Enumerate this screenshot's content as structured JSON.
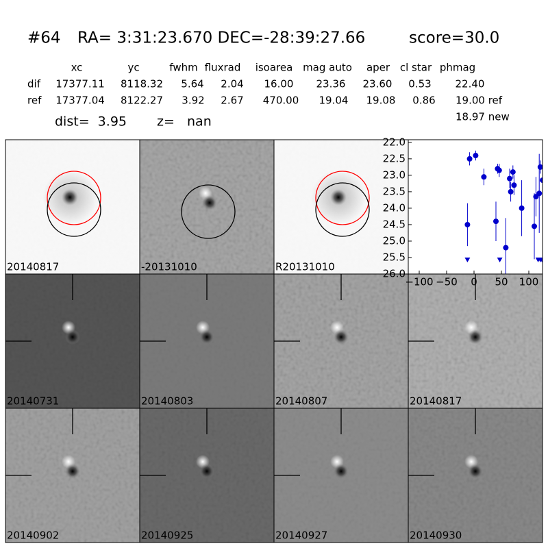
{
  "header": {
    "id": "#64",
    "coords": "RA= 3:31:23.670 DEC=-28:39:27.66",
    "score": "score=30.0"
  },
  "table": {
    "columns": [
      "xc",
      "yc",
      "fwhm",
      "fluxrad",
      "isoarea",
      "mag auto",
      "aper",
      "cl star",
      "phmag"
    ],
    "rows": [
      {
        "label": "dif",
        "cells": [
          "17377.11",
          "8118.32",
          "5.64",
          "2.04",
          "16.00",
          "23.36",
          "23.60",
          "0.53",
          "22.40"
        ]
      },
      {
        "label": "ref",
        "cells": [
          "17377.04",
          "8122.27",
          "3.92",
          "2.67",
          "470.00",
          "19.04",
          "19.08",
          "0.86",
          "19.00 ref"
        ]
      }
    ],
    "extra": "18.97 new"
  },
  "summary": {
    "dist": "dist=  3.95",
    "z": "z=   nan"
  },
  "panels": [
    {
      "label": "20140817"
    },
    {
      "label": "-20131010"
    },
    {
      "label": "R20131010"
    },
    {
      "label": "20140731"
    },
    {
      "label": "20140803"
    },
    {
      "label": "20140807"
    },
    {
      "label": "20140817",
      "color": "#ff0000"
    },
    {
      "label": "20140902"
    },
    {
      "label": "20140925"
    },
    {
      "label": "20140927"
    },
    {
      "label": "20140930"
    }
  ],
  "chart_data": {
    "type": "errorbar",
    "x": [
      -12,
      -8,
      3,
      18,
      40,
      43,
      46,
      58,
      65,
      67,
      71,
      73,
      87,
      110,
      113,
      119,
      121,
      125
    ],
    "series": [
      {
        "color": "#0000cc",
        "values": [
          24.5,
          22.5,
          22.4,
          23.05,
          24.4,
          22.8,
          22.85,
          25.2,
          23.1,
          23.5,
          22.9,
          23.3,
          24.0,
          24.55,
          23.65,
          23.55,
          22.75,
          23.15
        ],
        "errors": [
          0.65,
          0.2,
          0.15,
          0.25,
          0.6,
          0.15,
          0.2,
          0.9,
          0.3,
          0.3,
          0.2,
          0.3,
          0.85,
          1.0,
          0.6,
          1.2,
          0.2,
          0.4
        ]
      }
    ],
    "limits": {
      "x": [
        -12,
        47,
        117,
        121,
        124
      ],
      "values": [
        25.5,
        25.5,
        25.5,
        25.5,
        25.5
      ],
      "color": "#0000cc"
    },
    "xlim": [
      -120,
      125
    ],
    "ylim": [
      26,
      21.92
    ],
    "xticks": [
      {
        "value": -100,
        "label": "−100"
      },
      {
        "value": -50,
        "label": "−50"
      },
      0,
      50,
      100
    ],
    "yticks": [
      {
        "value": 22,
        "label": "22.0"
      },
      {
        "value": 22.5,
        "label": "22.5"
      },
      {
        "value": 23,
        "label": "23.0"
      },
      {
        "value": 23.5,
        "label": "23.5"
      },
      {
        "value": 24,
        "label": "24.0"
      },
      {
        "value": 24.5,
        "label": "24.5"
      },
      {
        "value": 25,
        "label": "25.0"
      },
      {
        "value": 25.5,
        "label": "25.5"
      },
      {
        "value": 26,
        "label": "26.0"
      }
    ]
  }
}
